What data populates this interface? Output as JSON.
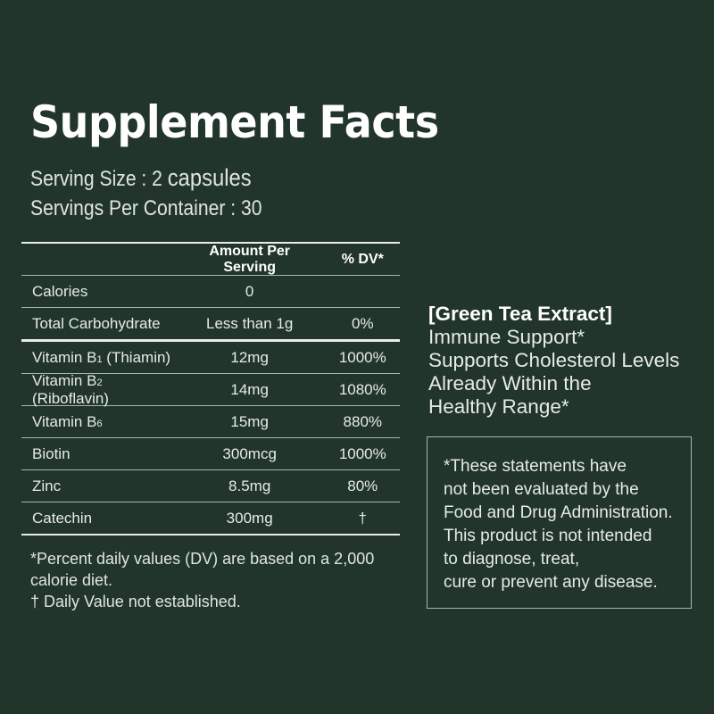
{
  "title": "Supplement Facts",
  "serving_size": {
    "label": "Serving Size : 2",
    "unit": "capsules"
  },
  "servings_per_container": {
    "label": "Servings Per Container :",
    "value": "30"
  },
  "table": {
    "headers": [
      "",
      "Amount Per Serving",
      "% DV*"
    ],
    "rows": [
      {
        "name": "Calories",
        "amount": "0",
        "dv": ""
      },
      {
        "name": "Total Carbohydrate",
        "amount": "Less than 1g",
        "dv": "0%"
      },
      {
        "name": "Vitamin B",
        "sub": "1",
        "suffix": " (Thiamin)",
        "amount": "12mg",
        "dv": "1000%"
      },
      {
        "name": "Vitamin B",
        "sub": "2",
        "suffix": " (Riboflavin)",
        "amount": "14mg",
        "dv": "1080%"
      },
      {
        "name": "Vitamin B",
        "sub": "6",
        "suffix": "",
        "amount": "15mg",
        "dv": "880%"
      },
      {
        "name": "Biotin",
        "amount": "300mcg",
        "dv": "1000%"
      },
      {
        "name": "Zinc",
        "amount": "8.5mg",
        "dv": "80%"
      },
      {
        "name": "Catechin",
        "amount": "300mg",
        "dv": "†"
      }
    ]
  },
  "footnotes": [
    "*Percent daily values (DV) are based on a 2,000 calorie diet.",
    "† Daily Value not established."
  ],
  "green_tea": {
    "heading": "[Green Tea Extract]",
    "lines": [
      "Immune Support*",
      "Supports Cholesterol Levels",
      "Already Within the",
      "Healthy Range*"
    ]
  },
  "disclaimer": [
    "*These statements have",
    "not been evaluated by the",
    "Food and Drug Administration.",
    "This product is not intended",
    "to diagnose, treat,",
    "cure or prevent any disease."
  ]
}
